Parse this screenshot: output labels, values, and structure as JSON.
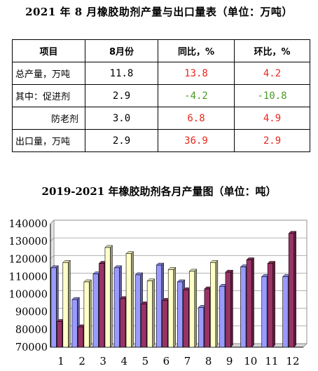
{
  "table_title": "2021 年 8 月橡胶助剂产量与出口量表（单位：万吨）",
  "table": {
    "headers": [
      "项目",
      "8月份",
      "同比，%",
      "环比，%"
    ],
    "rows": [
      {
        "label": "总产量，万吨",
        "value": "11.8",
        "yoy": "13.8",
        "mom": "4.2",
        "yoy_color": "red",
        "mom_color": "red"
      },
      {
        "label": "其中：促进剂",
        "value": "2.9",
        "yoy": "-4.2",
        "mom": "-10.8",
        "yoy_color": "green",
        "mom_color": "green"
      },
      {
        "label": "防老剂",
        "value": "3.0",
        "yoy": "6.8",
        "mom": "4.9",
        "yoy_color": "red",
        "mom_color": "red"
      },
      {
        "label": "出口量，万吨",
        "value": "2.9",
        "yoy": "36.9",
        "mom": "2.9",
        "yoy_color": "red",
        "mom_color": "red"
      }
    ]
  },
  "chart_data": {
    "type": "bar",
    "title": "2019-2021 年橡胶助剂各月产量图（单位：吨）",
    "xlabel": "",
    "ylabel": "",
    "categories": [
      "1",
      "2",
      "3",
      "4",
      "5",
      "6",
      "7",
      "8",
      "9",
      "10",
      "11",
      "12"
    ],
    "ylim": [
      70000,
      140000
    ],
    "yticks": [
      "140000",
      "130000",
      "120000",
      "110000",
      "100000",
      "90000",
      "80000",
      "70000"
    ],
    "grid": true,
    "legend": "none",
    "series": [
      {
        "color": "#9a9aff",
        "values": [
          115000,
          97000,
          111500,
          115000,
          111000,
          116500,
          107000,
          92500,
          104500,
          115500,
          110000,
          110000
        ]
      },
      {
        "color": "#993366",
        "values": [
          84500,
          81500,
          117500,
          97500,
          94500,
          96500,
          102500,
          103000,
          112500,
          119500,
          117500,
          134500
        ]
      },
      {
        "color": "#ffffc8",
        "values": [
          118000,
          107000,
          126500,
          123000,
          107500,
          114000,
          113000,
          118000,
          null,
          null,
          null,
          null
        ]
      }
    ]
  }
}
